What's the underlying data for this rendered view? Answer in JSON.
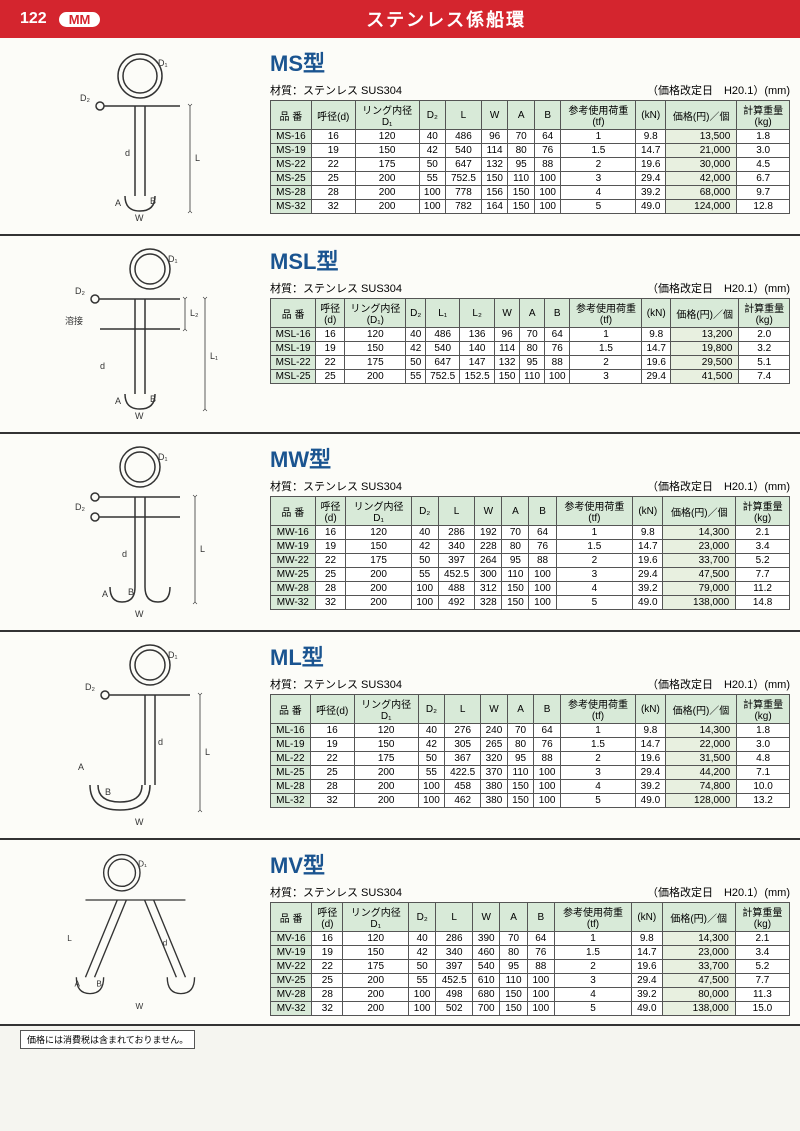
{
  "page_number": "122",
  "badge": "MM",
  "page_title": "ステンレス係船環",
  "material_label": "材質：ステンレス SUS304",
  "revision_label": "（価格改定日　H20.1）(mm)",
  "footer_note": "価格には消費税は含まれておりません。",
  "sections": [
    {
      "title": "MS型",
      "headers": [
        "品 番",
        "呼径(d)",
        "リング内径\nD₁",
        "D₂",
        "L",
        "W",
        "A",
        "B",
        "参考使用荷重\n(tf)",
        "(kN)",
        "価格(円)／個",
        "計算重量\n(kg)"
      ],
      "rows": [
        [
          "MS-16",
          "16",
          "120",
          "40",
          "486",
          "96",
          "70",
          "64",
          "1",
          "9.8",
          "13,500",
          "1.8"
        ],
        [
          "MS-19",
          "19",
          "150",
          "42",
          "540",
          "114",
          "80",
          "76",
          "1.5",
          "14.7",
          "21,000",
          "3.0"
        ],
        [
          "MS-22",
          "22",
          "175",
          "50",
          "647",
          "132",
          "95",
          "88",
          "2",
          "19.6",
          "30,000",
          "4.5"
        ],
        [
          "MS-25",
          "25",
          "200",
          "55",
          "752.5",
          "150",
          "110",
          "100",
          "3",
          "29.4",
          "42,000",
          "6.7"
        ],
        [
          "MS-28",
          "28",
          "200",
          "100",
          "778",
          "156",
          "150",
          "100",
          "4",
          "39.2",
          "68,000",
          "9.7"
        ],
        [
          "MS-32",
          "32",
          "200",
          "100",
          "782",
          "164",
          "150",
          "100",
          "5",
          "49.0",
          "124,000",
          "12.8"
        ]
      ]
    },
    {
      "title": "MSL型",
      "headers": [
        "品 番",
        "呼径\n(d)",
        "リング内径\n(D₁)",
        "D₂",
        "L₁",
        "L₂",
        "W",
        "A",
        "B",
        "参考使用荷重\n(tf)",
        "(kN)",
        "価格(円)／個",
        "計算重量\n(kg)"
      ],
      "rows": [
        [
          "MSL-16",
          "16",
          "120",
          "40",
          "486",
          "136",
          "96",
          "70",
          "64",
          "1",
          "9.8",
          "13,200",
          "2.0"
        ],
        [
          "MSL-19",
          "19",
          "150",
          "42",
          "540",
          "140",
          "114",
          "80",
          "76",
          "1.5",
          "14.7",
          "19,800",
          "3.2"
        ],
        [
          "MSL-22",
          "22",
          "175",
          "50",
          "647",
          "147",
          "132",
          "95",
          "88",
          "2",
          "19.6",
          "29,500",
          "5.1"
        ],
        [
          "MSL-25",
          "25",
          "200",
          "55",
          "752.5",
          "152.5",
          "150",
          "110",
          "100",
          "3",
          "29.4",
          "41,500",
          "7.4"
        ]
      ]
    },
    {
      "title": "MW型",
      "headers": [
        "品 番",
        "呼径\n(d)",
        "リング内径\nD₁",
        "D₂",
        "L",
        "W",
        "A",
        "B",
        "参考使用荷重\n(tf)",
        "(kN)",
        "価格(円)／個",
        "計算重量\n(kg)"
      ],
      "rows": [
        [
          "MW-16",
          "16",
          "120",
          "40",
          "286",
          "192",
          "70",
          "64",
          "1",
          "9.8",
          "14,300",
          "2.1"
        ],
        [
          "MW-19",
          "19",
          "150",
          "42",
          "340",
          "228",
          "80",
          "76",
          "1.5",
          "14.7",
          "23,000",
          "3.4"
        ],
        [
          "MW-22",
          "22",
          "175",
          "50",
          "397",
          "264",
          "95",
          "88",
          "2",
          "19.6",
          "33,700",
          "5.2"
        ],
        [
          "MW-25",
          "25",
          "200",
          "55",
          "452.5",
          "300",
          "110",
          "100",
          "3",
          "29.4",
          "47,500",
          "7.7"
        ],
        [
          "MW-28",
          "28",
          "200",
          "100",
          "488",
          "312",
          "150",
          "100",
          "4",
          "39.2",
          "79,000",
          "11.2"
        ],
        [
          "MW-32",
          "32",
          "200",
          "100",
          "492",
          "328",
          "150",
          "100",
          "5",
          "49.0",
          "138,000",
          "14.8"
        ]
      ]
    },
    {
      "title": "ML型",
      "headers": [
        "品 番",
        "呼径(d)",
        "リング内径\nD₁",
        "D₂",
        "L",
        "W",
        "A",
        "B",
        "参考使用荷重\n(tf)",
        "(kN)",
        "価格(円)／個",
        "計算重量\n(kg)"
      ],
      "rows": [
        [
          "ML-16",
          "16",
          "120",
          "40",
          "276",
          "240",
          "70",
          "64",
          "1",
          "9.8",
          "14,300",
          "1.8"
        ],
        [
          "ML-19",
          "19",
          "150",
          "42",
          "305",
          "265",
          "80",
          "76",
          "1.5",
          "14.7",
          "22,000",
          "3.0"
        ],
        [
          "ML-22",
          "22",
          "175",
          "50",
          "367",
          "320",
          "95",
          "88",
          "2",
          "19.6",
          "31,500",
          "4.8"
        ],
        [
          "ML-25",
          "25",
          "200",
          "55",
          "422.5",
          "370",
          "110",
          "100",
          "3",
          "29.4",
          "44,200",
          "7.1"
        ],
        [
          "ML-28",
          "28",
          "200",
          "100",
          "458",
          "380",
          "150",
          "100",
          "4",
          "39.2",
          "74,800",
          "10.0"
        ],
        [
          "ML-32",
          "32",
          "200",
          "100",
          "462",
          "380",
          "150",
          "100",
          "5",
          "49.0",
          "128,000",
          "13.2"
        ]
      ]
    },
    {
      "title": "MV型",
      "headers": [
        "品 番",
        "呼径\n(d)",
        "リング内径\nD₁",
        "D₂",
        "L",
        "W",
        "A",
        "B",
        "参考使用荷重\n(tf)",
        "(kN)",
        "価格(円)／個",
        "計算重量\n(kg)"
      ],
      "rows": [
        [
          "MV-16",
          "16",
          "120",
          "40",
          "286",
          "390",
          "70",
          "64",
          "1",
          "9.8",
          "14,300",
          "2.1"
        ],
        [
          "MV-19",
          "19",
          "150",
          "42",
          "340",
          "460",
          "80",
          "76",
          "1.5",
          "14.7",
          "23,000",
          "3.4"
        ],
        [
          "MV-22",
          "22",
          "175",
          "50",
          "397",
          "540",
          "95",
          "88",
          "2",
          "19.6",
          "33,700",
          "5.2"
        ],
        [
          "MV-25",
          "25",
          "200",
          "55",
          "452.5",
          "610",
          "110",
          "100",
          "3",
          "29.4",
          "47,500",
          "7.7"
        ],
        [
          "MV-28",
          "28",
          "200",
          "100",
          "498",
          "680",
          "150",
          "100",
          "4",
          "39.2",
          "80,000",
          "11.3"
        ],
        [
          "MV-32",
          "32",
          "200",
          "100",
          "502",
          "700",
          "150",
          "100",
          "5",
          "49.0",
          "138,000",
          "15.0"
        ]
      ]
    }
  ],
  "diagrams": {
    "ms": {
      "labels": [
        "D₁",
        "D₂",
        "d",
        "L",
        "A",
        "B",
        "W"
      ]
    },
    "msl": {
      "labels": [
        "D₁",
        "D₂",
        "d",
        "L₁",
        "L₂",
        "A",
        "B",
        "W",
        "溶接"
      ]
    },
    "mw": {
      "labels": [
        "D₁",
        "D₂",
        "d",
        "L",
        "A",
        "B",
        "W"
      ]
    },
    "ml": {
      "labels": [
        "D₁",
        "D₂",
        "d",
        "L",
        "A",
        "B",
        "W"
      ]
    },
    "mv": {
      "labels": [
        "D₁",
        "d",
        "L",
        "A",
        "B",
        "W"
      ]
    }
  }
}
